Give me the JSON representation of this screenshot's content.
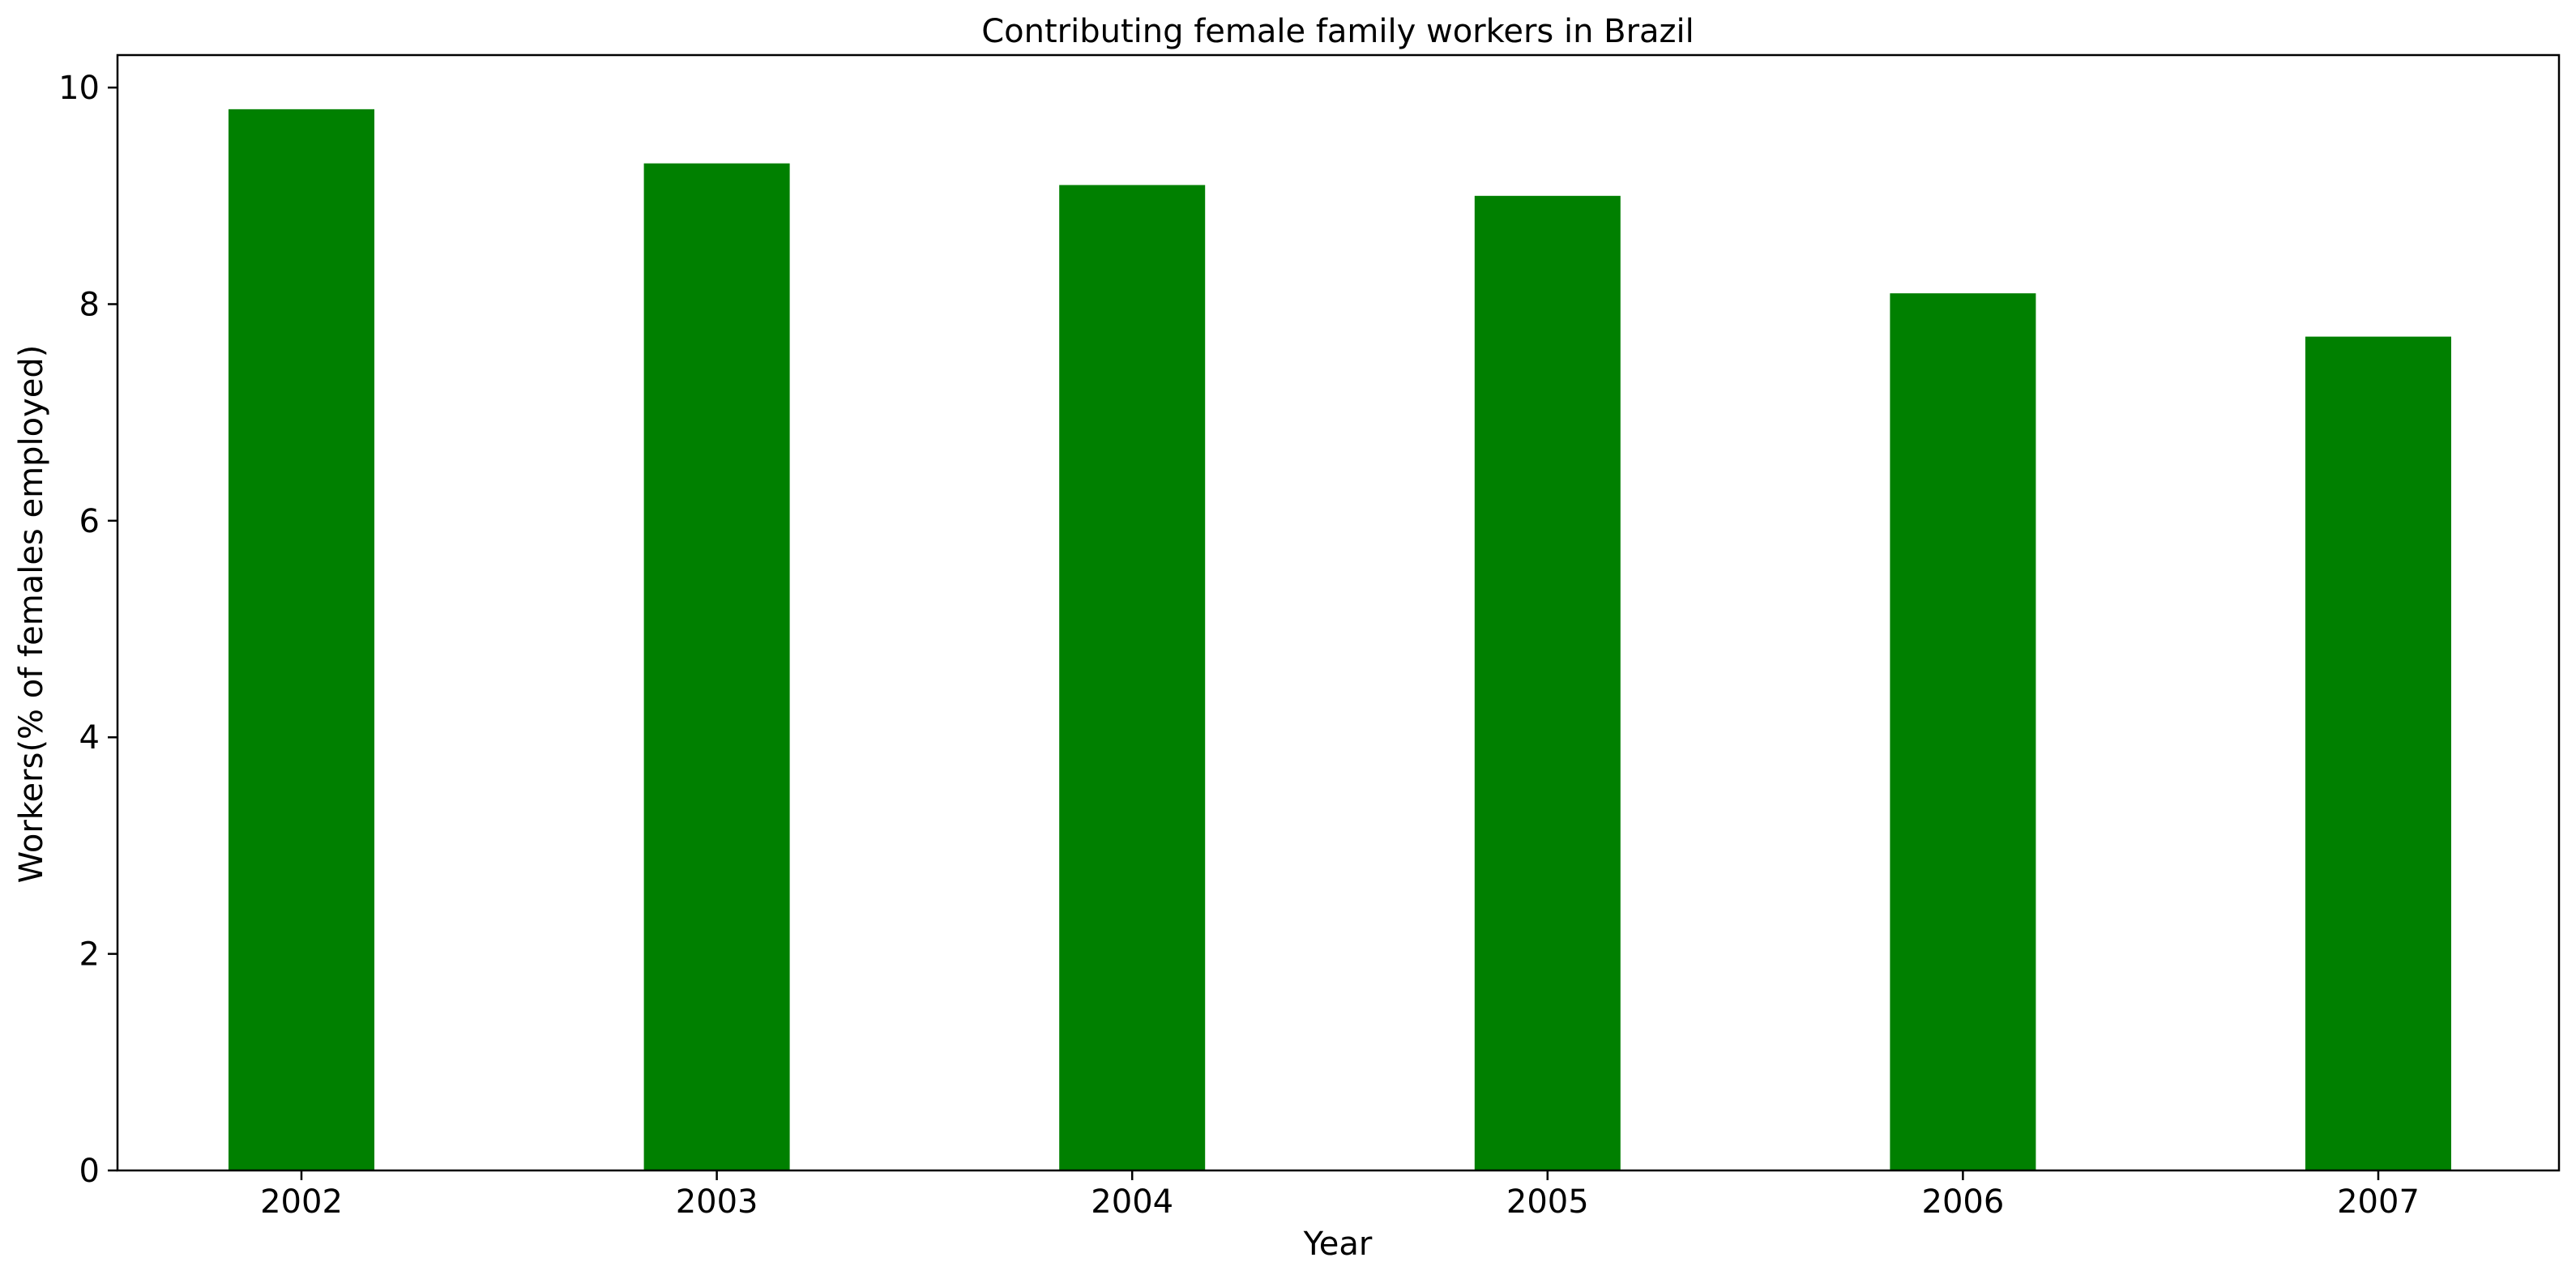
{
  "chart_data": {
    "type": "bar",
    "title": "Contributing female family workers in Brazil",
    "xlabel": "Year",
    "ylabel": "Workers(% of females employed)",
    "categories": [
      "2002",
      "2003",
      "2004",
      "2005",
      "2006",
      "2007"
    ],
    "values": [
      9.8,
      9.3,
      9.1,
      9.0,
      8.1,
      7.7
    ],
    "ylim": [
      0,
      10.3
    ],
    "yticks": [
      0,
      2,
      4,
      6,
      8,
      10
    ],
    "bar_color": "#008000",
    "grid": false,
    "legend": "none"
  }
}
